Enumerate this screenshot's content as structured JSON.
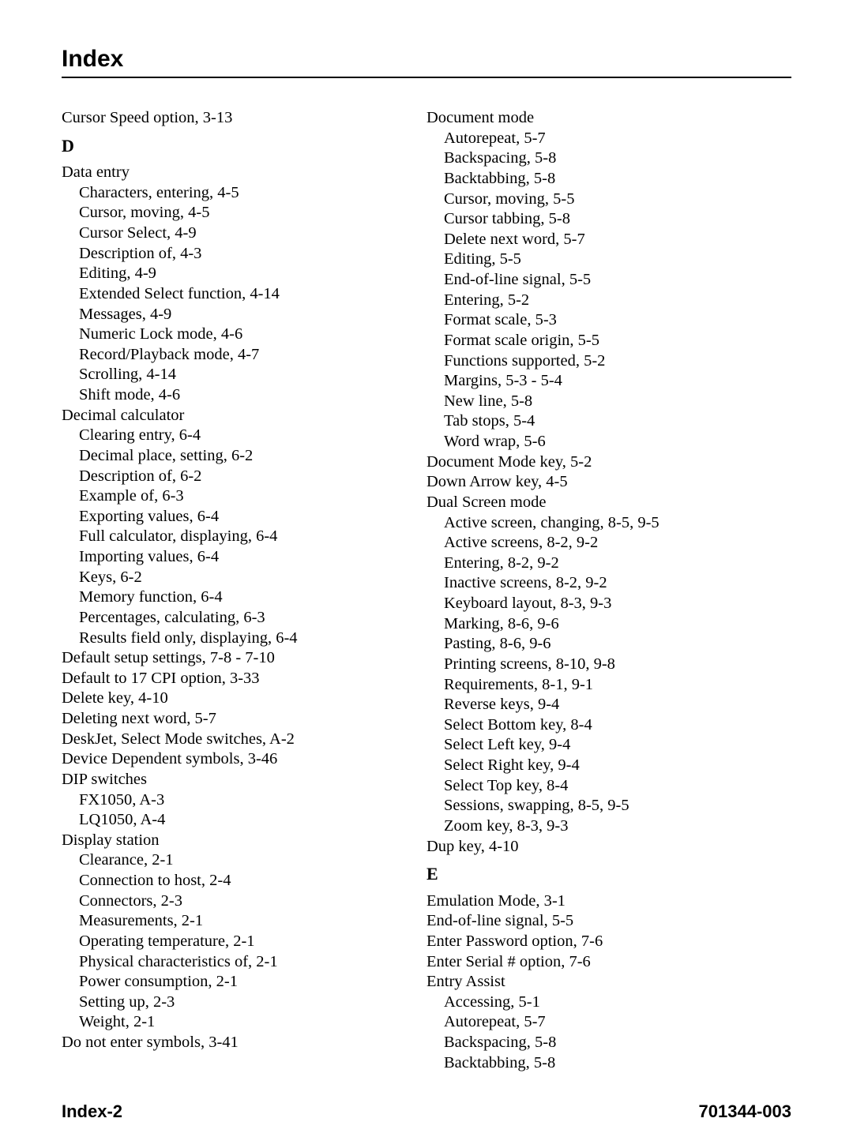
{
  "title": "Index",
  "footer_left": "Index-2",
  "footer_right": "701344-003",
  "left_col": [
    {
      "kind": "entry",
      "text": "Cursor Speed option,  3-13"
    },
    {
      "kind": "letter",
      "text": "D"
    },
    {
      "kind": "entry",
      "text": "Data entry"
    },
    {
      "kind": "sub",
      "text": "Characters, entering,  4-5"
    },
    {
      "kind": "sub",
      "text": "Cursor, moving,  4-5"
    },
    {
      "kind": "sub",
      "text": "Cursor Select,  4-9"
    },
    {
      "kind": "sub",
      "text": "Description of,  4-3"
    },
    {
      "kind": "sub",
      "text": "Editing,  4-9"
    },
    {
      "kind": "sub",
      "text": "Extended Select function,  4-14"
    },
    {
      "kind": "sub",
      "text": "Messages,  4-9"
    },
    {
      "kind": "sub",
      "text": "Numeric Lock mode,  4-6"
    },
    {
      "kind": "sub",
      "text": "Record/Playback mode,  4-7"
    },
    {
      "kind": "sub",
      "text": "Scrolling,  4-14"
    },
    {
      "kind": "sub",
      "text": "Shift mode,  4-6"
    },
    {
      "kind": "entry",
      "text": "Decimal calculator"
    },
    {
      "kind": "sub",
      "text": "Clearing entry,  6-4"
    },
    {
      "kind": "sub",
      "text": "Decimal place, setting,  6-2"
    },
    {
      "kind": "sub",
      "text": "Description of,  6-2"
    },
    {
      "kind": "sub",
      "text": "Example of,  6-3"
    },
    {
      "kind": "sub",
      "text": "Exporting values,  6-4"
    },
    {
      "kind": "sub",
      "text": "Full calculator, displaying,  6-4"
    },
    {
      "kind": "sub",
      "text": "Importing values,  6-4"
    },
    {
      "kind": "sub",
      "text": "Keys,  6-2"
    },
    {
      "kind": "sub",
      "text": "Memory function,  6-4"
    },
    {
      "kind": "sub",
      "text": "Percentages, calculating,  6-3"
    },
    {
      "kind": "sub",
      "text": "Results field only, displaying,  6-4"
    },
    {
      "kind": "entry",
      "text": "Default setup settings,  7-8  -  7-10"
    },
    {
      "kind": "entry",
      "text": "Default to 17 CPI option,  3-33"
    },
    {
      "kind": "entry",
      "text": "Delete key,  4-10"
    },
    {
      "kind": "entry",
      "text": "Deleting next word,  5-7"
    },
    {
      "kind": "entry",
      "text": "DeskJet, Select Mode switches,  A-2"
    },
    {
      "kind": "entry",
      "text": "Device Dependent symbols,  3-46"
    },
    {
      "kind": "entry",
      "text": "DIP switches"
    },
    {
      "kind": "sub",
      "text": "FX1050,  A-3"
    },
    {
      "kind": "sub",
      "text": "LQ1050,  A-4"
    },
    {
      "kind": "entry",
      "text": "Display station"
    },
    {
      "kind": "sub",
      "text": "Clearance,  2-1"
    },
    {
      "kind": "sub",
      "text": "Connection to host,  2-4"
    },
    {
      "kind": "sub",
      "text": "Connectors,  2-3"
    },
    {
      "kind": "sub",
      "text": "Measurements,  2-1"
    },
    {
      "kind": "sub",
      "text": "Operating temperature,  2-1"
    },
    {
      "kind": "sub",
      "text": "Physical characteristics of,  2-1"
    },
    {
      "kind": "sub",
      "text": "Power consumption,  2-1"
    },
    {
      "kind": "sub",
      "text": "Setting up,  2-3"
    },
    {
      "kind": "sub",
      "text": "Weight,  2-1"
    },
    {
      "kind": "entry",
      "text": "Do not enter symbols,  3-41"
    }
  ],
  "right_col": [
    {
      "kind": "entry",
      "text": "Document mode"
    },
    {
      "kind": "sub",
      "text": "Autorepeat,  5-7"
    },
    {
      "kind": "sub",
      "text": "Backspacing,  5-8"
    },
    {
      "kind": "sub",
      "text": "Backtabbing,  5-8"
    },
    {
      "kind": "sub",
      "text": "Cursor, moving,  5-5"
    },
    {
      "kind": "sub",
      "text": "Cursor tabbing,  5-8"
    },
    {
      "kind": "sub",
      "text": "Delete next word,  5-7"
    },
    {
      "kind": "sub",
      "text": "Editing,  5-5"
    },
    {
      "kind": "sub",
      "text": "End-of-line signal,  5-5"
    },
    {
      "kind": "sub",
      "text": "Entering,  5-2"
    },
    {
      "kind": "sub",
      "text": "Format scale,  5-3"
    },
    {
      "kind": "sub",
      "text": "Format scale origin,  5-5"
    },
    {
      "kind": "sub",
      "text": "Functions supported,  5-2"
    },
    {
      "kind": "sub",
      "text": "Margins,  5-3  -  5-4"
    },
    {
      "kind": "sub",
      "text": "New line,  5-8"
    },
    {
      "kind": "sub",
      "text": "Tab stops,  5-4"
    },
    {
      "kind": "sub",
      "text": "Word wrap,  5-6"
    },
    {
      "kind": "entry",
      "text": "Document Mode key,  5-2"
    },
    {
      "kind": "entry",
      "text": "Down Arrow key,  4-5"
    },
    {
      "kind": "entry",
      "text": "Dual Screen mode"
    },
    {
      "kind": "sub",
      "text": "Active screen, changing,  8-5,  9-5"
    },
    {
      "kind": "sub",
      "text": "Active screens,  8-2,  9-2"
    },
    {
      "kind": "sub",
      "text": "Entering,  8-2,  9-2"
    },
    {
      "kind": "sub",
      "text": "Inactive screens,  8-2,  9-2"
    },
    {
      "kind": "sub",
      "text": "Keyboard layout,  8-3,  9-3"
    },
    {
      "kind": "sub",
      "text": "Marking,  8-6,  9-6"
    },
    {
      "kind": "sub",
      "text": "Pasting,  8-6,  9-6"
    },
    {
      "kind": "sub",
      "text": "Printing screens,  8-10,  9-8"
    },
    {
      "kind": "sub",
      "text": "Requirements,  8-1,  9-1"
    },
    {
      "kind": "sub",
      "text": "Reverse keys,  9-4"
    },
    {
      "kind": "sub",
      "text": "Select Bottom key,  8-4"
    },
    {
      "kind": "sub",
      "text": "Select Left key,  9-4"
    },
    {
      "kind": "sub",
      "text": "Select Right key,  9-4"
    },
    {
      "kind": "sub",
      "text": "Select Top key,  8-4"
    },
    {
      "kind": "sub",
      "text": "Sessions, swapping,  8-5,  9-5"
    },
    {
      "kind": "sub",
      "text": "Zoom key,  8-3,  9-3"
    },
    {
      "kind": "entry",
      "text": "Dup key,  4-10"
    },
    {
      "kind": "letter",
      "text": "E"
    },
    {
      "kind": "entry",
      "text": "Emulation Mode,  3-1"
    },
    {
      "kind": "entry",
      "text": "End-of-line signal,  5-5"
    },
    {
      "kind": "entry",
      "text": "Enter Password option,  7-6"
    },
    {
      "kind": "entry",
      "text": "Enter Serial # option,  7-6"
    },
    {
      "kind": "entry",
      "text": "Entry Assist"
    },
    {
      "kind": "sub",
      "text": "Accessing,  5-1"
    },
    {
      "kind": "sub",
      "text": "Autorepeat,  5-7"
    },
    {
      "kind": "sub",
      "text": "Backspacing,  5-8"
    },
    {
      "kind": "sub",
      "text": "Backtabbing,  5-8"
    }
  ]
}
